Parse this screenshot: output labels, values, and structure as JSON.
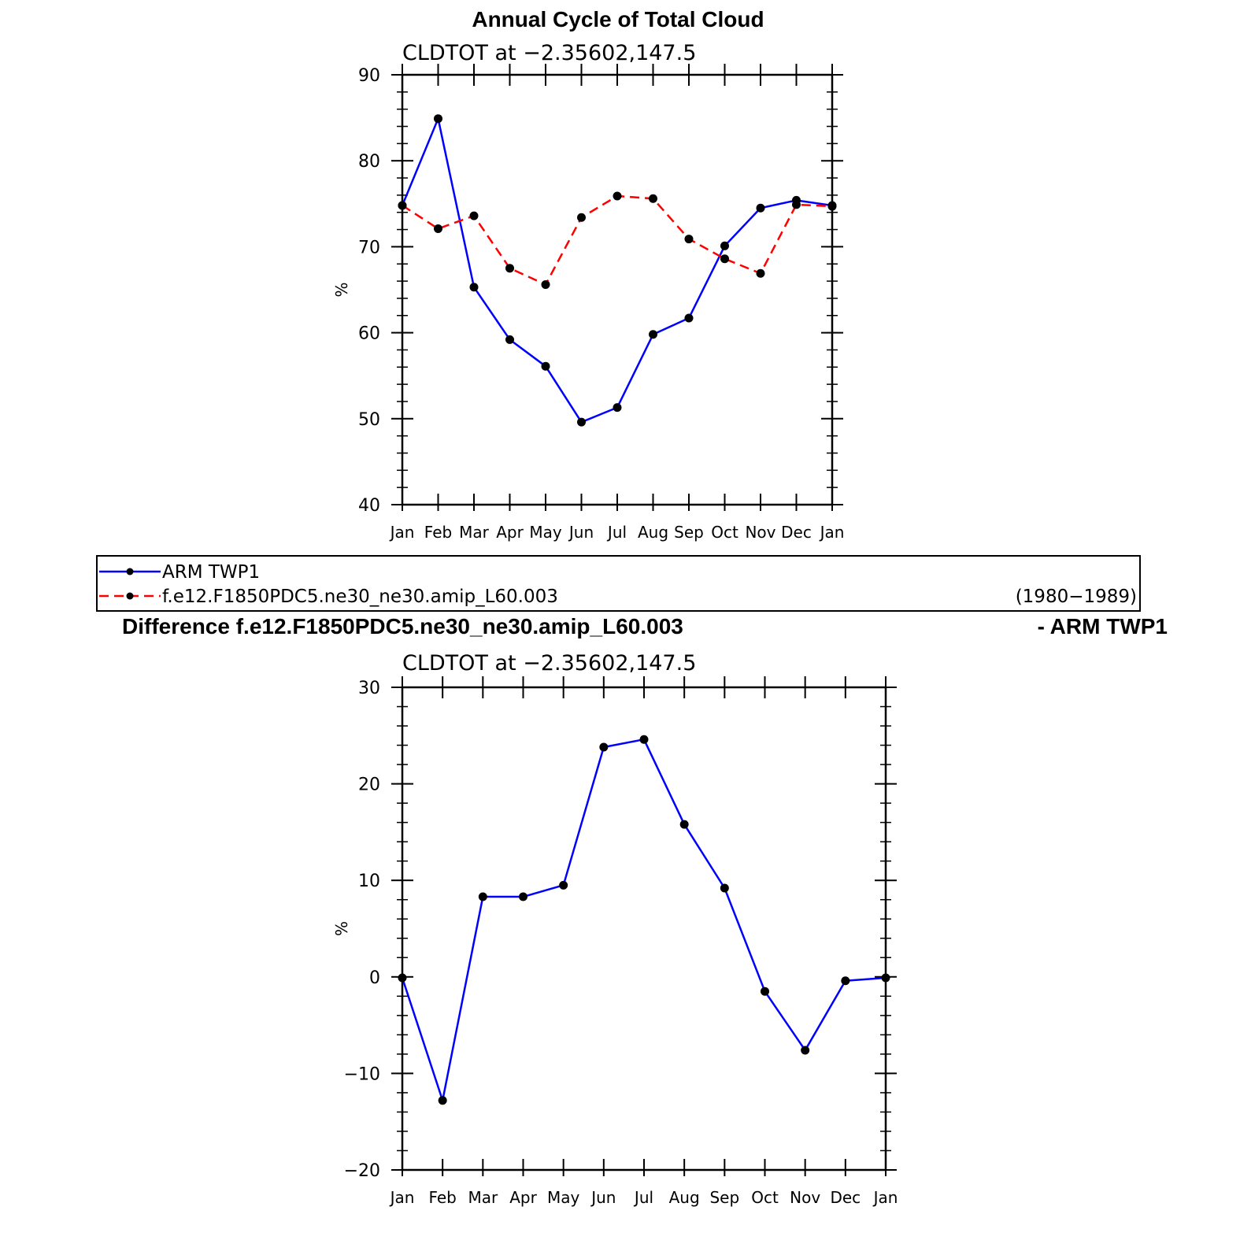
{
  "chart_data": [
    {
      "type": "line",
      "title": "Annual Cycle of Total Cloud",
      "subtitle": "CLDTOT at −2.35602,147.5",
      "ylabel": "%",
      "xlabel": "",
      "categories": [
        "Jan",
        "Feb",
        "Mar",
        "Apr",
        "May",
        "Jun",
        "Jul",
        "Aug",
        "Sep",
        "Oct",
        "Nov",
        "Dec",
        "Jan"
      ],
      "ylim": [
        40,
        90
      ],
      "yticks": [
        "40",
        "50",
        "60",
        "70",
        "80",
        "90"
      ],
      "grid": false,
      "series": [
        {
          "name": "ARM TWP1",
          "color": "#0000ff",
          "dash": "solid",
          "values": [
            74.8,
            84.9,
            65.3,
            59.2,
            56.1,
            49.6,
            51.3,
            59.8,
            61.7,
            70.1,
            74.5,
            75.4,
            74.8
          ]
        },
        {
          "name": "f.e12.F1850PDC5.ne30_ne30.amip_L60.003",
          "color": "#ff0000",
          "dash": "dashed",
          "values": [
            74.8,
            72.1,
            73.6,
            67.5,
            65.6,
            73.4,
            75.9,
            75.6,
            70.9,
            68.6,
            66.9,
            74.9,
            74.7
          ]
        }
      ]
    },
    {
      "type": "line",
      "title": "Difference f.e12.F1850PDC5.ne30_ne30.amip_L60.003",
      "title_right": "- ARM TWP1",
      "subtitle": "CLDTOT at −2.35602,147.5",
      "ylabel": "%",
      "xlabel": "",
      "categories": [
        "Jan",
        "Feb",
        "Mar",
        "Apr",
        "May",
        "Jun",
        "Jul",
        "Aug",
        "Sep",
        "Oct",
        "Nov",
        "Dec",
        "Jan"
      ],
      "ylim": [
        -20,
        30
      ],
      "yticks": [
        "−20",
        "−10",
        "0",
        "10",
        "20",
        "30"
      ],
      "grid": false,
      "series": [
        {
          "color": "#0000ff",
          "dash": "solid",
          "values": [
            -0.1,
            -12.8,
            8.3,
            8.3,
            9.5,
            23.8,
            24.6,
            15.8,
            9.2,
            -1.5,
            -7.6,
            -0.4,
            -0.1
          ]
        }
      ]
    }
  ],
  "legend": {
    "placement": "between-charts",
    "entries": [
      {
        "label": "ARM TWP1",
        "note": ""
      },
      {
        "label": "f.e12.F1850PDC5.ne30_ne30.amip_L60.003",
        "note": "(1980−1989)"
      }
    ]
  }
}
